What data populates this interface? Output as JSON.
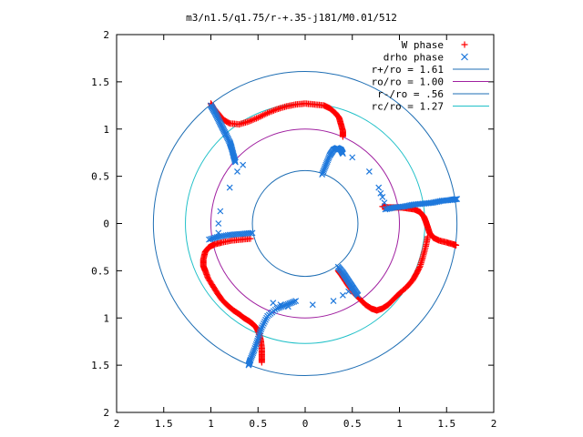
{
  "chart_data": {
    "type": "scatter",
    "title": "m3/n1.5/q1.75/r-+.35-j181/M0.01/512",
    "xlabel": "",
    "ylabel": "",
    "xlim": [
      -2,
      2
    ],
    "ylim": [
      -2,
      2
    ],
    "x_ticks": [
      {
        "value": -2,
        "label": "2"
      },
      {
        "value": -1.5,
        "label": "1.5"
      },
      {
        "value": -1,
        "label": "1"
      },
      {
        "value": -0.5,
        "label": "0.5"
      },
      {
        "value": 0,
        "label": "0"
      },
      {
        "value": 0.5,
        "label": "0.5"
      },
      {
        "value": 1,
        "label": "1"
      },
      {
        "value": 1.5,
        "label": "1.5"
      },
      {
        "value": 2,
        "label": "2"
      }
    ],
    "y_ticks": [
      {
        "value": 2,
        "label": "2"
      },
      {
        "value": 1.5,
        "label": "1.5"
      },
      {
        "value": 1,
        "label": "1"
      },
      {
        "value": 0.5,
        "label": "0.5"
      },
      {
        "value": 0,
        "label": "0"
      },
      {
        "value": -0.5,
        "label": "0.5"
      },
      {
        "value": -1,
        "label": "1"
      },
      {
        "value": -1.5,
        "label": "1.5"
      },
      {
        "value": -2,
        "label": "2"
      }
    ],
    "grid": false,
    "legend_position": "top-right",
    "circles": [
      {
        "name": "r+/ro = 1.61",
        "radius": 1.61,
        "color": "#1e6eb4"
      },
      {
        "name": "ro/ro = 1.00",
        "radius": 1.0,
        "color": "#a020a0"
      },
      {
        "name": "r-/ro = .56",
        "radius": 0.56,
        "color": "#1e6eb4"
      },
      {
        "name": "rc/ro = 1.27",
        "radius": 1.27,
        "color": "#20c0c8"
      }
    ],
    "series": [
      {
        "name": "W phase",
        "marker": "plus",
        "color": "#ff0000",
        "arms": [
          [
            [
              -1.0,
              1.27
            ],
            [
              -0.97,
              1.22
            ],
            [
              -0.92,
              1.16
            ],
            [
              -0.87,
              1.1
            ],
            [
              -0.8,
              1.06
            ],
            [
              -0.7,
              1.05
            ],
            [
              -0.6,
              1.08
            ],
            [
              -0.5,
              1.12
            ],
            [
              -0.4,
              1.17
            ],
            [
              -0.3,
              1.21
            ],
            [
              -0.2,
              1.24
            ],
            [
              -0.1,
              1.26
            ],
            [
              0.0,
              1.27
            ],
            [
              0.1,
              1.26
            ],
            [
              0.2,
              1.25
            ],
            [
              0.26,
              1.22
            ],
            [
              0.32,
              1.17
            ],
            [
              0.36,
              1.12
            ],
            [
              0.38,
              1.05
            ],
            [
              0.4,
              0.98
            ],
            [
              0.4,
              0.92
            ]
          ],
          [
            [
              0.82,
              0.18
            ],
            [
              0.88,
              0.17
            ],
            [
              0.95,
              0.17
            ],
            [
              1.02,
              0.17
            ],
            [
              1.09,
              0.16
            ],
            [
              1.16,
              0.15
            ],
            [
              1.22,
              0.12
            ],
            [
              1.26,
              0.07
            ],
            [
              1.28,
              0.02
            ],
            [
              1.3,
              -0.04
            ],
            [
              1.32,
              -0.1
            ],
            [
              1.36,
              -0.15
            ],
            [
              1.42,
              -0.18
            ],
            [
              1.5,
              -0.2
            ],
            [
              1.57,
              -0.22
            ],
            [
              1.6,
              -0.23
            ]
          ],
          [
            [
              1.3,
              -0.14
            ],
            [
              1.28,
              -0.24
            ],
            [
              1.25,
              -0.35
            ],
            [
              1.22,
              -0.45
            ],
            [
              1.18,
              -0.53
            ],
            [
              1.14,
              -0.6
            ],
            [
              1.08,
              -0.67
            ],
            [
              1.0,
              -0.74
            ],
            [
              0.94,
              -0.8
            ],
            [
              0.88,
              -0.86
            ],
            [
              0.82,
              -0.9
            ],
            [
              0.76,
              -0.92
            ],
            [
              0.7,
              -0.9
            ],
            [
              0.64,
              -0.86
            ],
            [
              0.58,
              -0.8
            ],
            [
              0.52,
              -0.74
            ],
            [
              0.46,
              -0.66
            ],
            [
              0.42,
              -0.6
            ],
            [
              0.38,
              -0.54
            ],
            [
              0.35,
              -0.5
            ]
          ],
          [
            [
              -0.58,
              -0.16
            ],
            [
              -0.68,
              -0.17
            ],
            [
              -0.78,
              -0.18
            ],
            [
              -0.88,
              -0.2
            ],
            [
              -0.96,
              -0.22
            ],
            [
              -1.02,
              -0.25
            ],
            [
              -1.06,
              -0.3
            ],
            [
              -1.08,
              -0.38
            ],
            [
              -1.08,
              -0.45
            ],
            [
              -1.06,
              -0.5
            ],
            [
              -1.03,
              -0.58
            ],
            [
              -0.98,
              -0.66
            ],
            [
              -0.93,
              -0.74
            ],
            [
              -0.88,
              -0.81
            ],
            [
              -0.82,
              -0.87
            ],
            [
              -0.76,
              -0.92
            ],
            [
              -0.7,
              -0.96
            ],
            [
              -0.65,
              -1.0
            ],
            [
              -0.6,
              -1.03
            ],
            [
              -0.56,
              -1.06
            ],
            [
              -0.52,
              -1.1
            ],
            [
              -0.49,
              -1.16
            ],
            [
              -0.47,
              -1.24
            ],
            [
              -0.46,
              -1.32
            ],
            [
              -0.46,
              -1.4
            ],
            [
              -0.46,
              -1.47
            ]
          ]
        ]
      },
      {
        "name": "drho phase",
        "marker": "cross",
        "color": "#1e78dc",
        "arms": [
          [
            [
              -1.0,
              1.25
            ],
            [
              -0.96,
              1.18
            ],
            [
              -0.92,
              1.1
            ],
            [
              -0.88,
              1.02
            ],
            [
              -0.84,
              0.94
            ],
            [
              -0.8,
              0.86
            ],
            [
              -0.78,
              0.8
            ],
            [
              -0.76,
              0.72
            ],
            [
              -0.74,
              0.65
            ]
          ],
          [
            [
              0.18,
              0.52
            ],
            [
              0.22,
              0.62
            ],
            [
              0.26,
              0.72
            ],
            [
              0.3,
              0.78
            ],
            [
              0.34,
              0.8
            ],
            [
              0.38,
              0.78
            ],
            [
              0.4,
              0.74
            ]
          ],
          [
            [
              0.85,
              0.15
            ],
            [
              0.95,
              0.17
            ],
            [
              1.05,
              0.18
            ],
            [
              1.15,
              0.2
            ],
            [
              1.25,
              0.21
            ],
            [
              1.35,
              0.22
            ],
            [
              1.45,
              0.24
            ],
            [
              1.55,
              0.25
            ],
            [
              1.61,
              0.26
            ]
          ],
          [
            [
              0.35,
              -0.46
            ],
            [
              0.4,
              -0.52
            ],
            [
              0.44,
              -0.58
            ],
            [
              0.48,
              -0.64
            ],
            [
              0.52,
              -0.7
            ],
            [
              0.56,
              -0.76
            ]
          ],
          [
            [
              -0.56,
              -0.1
            ],
            [
              -0.68,
              -0.11
            ],
            [
              -0.8,
              -0.12
            ],
            [
              -0.92,
              -0.14
            ],
            [
              -1.02,
              -0.17
            ]
          ],
          [
            [
              -0.1,
              -0.82
            ],
            [
              -0.2,
              -0.86
            ],
            [
              -0.3,
              -0.9
            ],
            [
              -0.4,
              -0.98
            ],
            [
              -0.46,
              -1.1
            ],
            [
              -0.5,
              -1.22
            ],
            [
              -0.54,
              -1.34
            ],
            [
              -0.58,
              -1.44
            ],
            [
              -0.6,
              -1.5
            ]
          ]
        ],
        "scatter": [
          [
            -0.8,
            0.38
          ],
          [
            -0.9,
            0.13
          ],
          [
            -0.92,
            0.0
          ],
          [
            -0.92,
            -0.1
          ],
          [
            -0.72,
            0.55
          ],
          [
            -0.66,
            0.62
          ],
          [
            0.5,
            0.7
          ],
          [
            0.68,
            0.55
          ],
          [
            0.78,
            0.38
          ],
          [
            0.8,
            0.32
          ],
          [
            0.82,
            0.28
          ],
          [
            0.84,
            0.22
          ],
          [
            0.08,
            -0.86
          ],
          [
            0.3,
            -0.82
          ],
          [
            0.4,
            -0.76
          ],
          [
            0.46,
            -0.72
          ],
          [
            0.5,
            -0.68
          ],
          [
            -0.34,
            -0.84
          ],
          [
            -0.26,
            -0.86
          ],
          [
            -0.18,
            -0.88
          ]
        ]
      }
    ]
  }
}
